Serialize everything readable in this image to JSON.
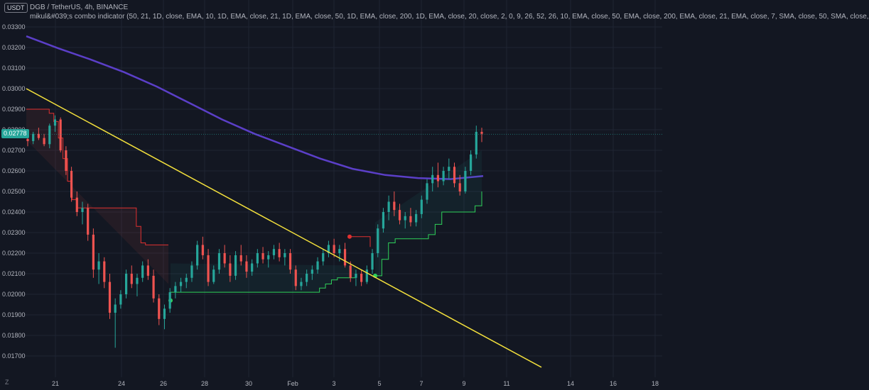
{
  "header": {
    "currency": "USDT",
    "title": "DGB / TetherUS, 4h, BINANCE",
    "indicator": "mikul&#039;s combo indicator (50, 21, 1D, close, EMA, 10, 1D, EMA, close, 21, 1D, EMA, close, 50, 1D, EMA, close, 200, 1D, EMA, close, 20, close, 2, 0, 9, 26, 52, 26, 10, EMA, close, 50, EMA, close, 200, EMA, close, 21, EMA, close, 7, SMA, close, 50, SMA, close,"
  },
  "current_price": "0.02778",
  "zoom_label": "Z",
  "colors": {
    "background": "#131722",
    "grid": "#1f2433",
    "up": "#26a69a",
    "down": "#ef5350",
    "ma": "#5b3fc8",
    "trendline": "#f3e03c",
    "stop_up": "#2fd15a",
    "stop_down": "#e03030"
  },
  "chart_data": {
    "type": "candlestick",
    "y_ticks": [
      "0.03300",
      "0.03200",
      "0.03100",
      "0.03000",
      "0.02900",
      "0.02800",
      "0.02700",
      "0.02600",
      "0.02500",
      "0.02400",
      "0.02300",
      "0.02200",
      "0.02100",
      "0.02000",
      "0.01900",
      "0.01800",
      "0.01700"
    ],
    "x_ticks": [
      "21",
      "24",
      "26",
      "28",
      "30",
      "Feb",
      "3",
      "5",
      "7",
      "9",
      "11",
      "14",
      "16",
      "18"
    ],
    "ylim": [
      0.0165,
      0.034
    ],
    "candles": [
      [
        0.02755,
        0.02775,
        0.0272,
        0.02745
      ],
      [
        0.02745,
        0.0279,
        0.0273,
        0.0278
      ],
      [
        0.0278,
        0.0281,
        0.0275,
        0.0276
      ],
      [
        0.0276,
        0.0278,
        0.0272,
        0.0273
      ],
      [
        0.0273,
        0.0283,
        0.0271,
        0.0282
      ],
      [
        0.0282,
        0.0287,
        0.0279,
        0.0285
      ],
      [
        0.0285,
        0.0286,
        0.0269,
        0.027
      ],
      [
        0.027,
        0.0272,
        0.0258,
        0.026
      ],
      [
        0.026,
        0.0262,
        0.0245,
        0.0247
      ],
      [
        0.0247,
        0.025,
        0.0238,
        0.024
      ],
      [
        0.024,
        0.0245,
        0.0234,
        0.0242
      ],
      [
        0.0242,
        0.0244,
        0.0226,
        0.0229
      ],
      [
        0.0229,
        0.0232,
        0.0208,
        0.0212
      ],
      [
        0.0212,
        0.022,
        0.0205,
        0.0216
      ],
      [
        0.0216,
        0.0218,
        0.0203,
        0.0206
      ],
      [
        0.0206,
        0.021,
        0.0188,
        0.0191
      ],
      [
        0.0191,
        0.0198,
        0.0174,
        0.0195
      ],
      [
        0.0195,
        0.0202,
        0.0193,
        0.02
      ],
      [
        0.02,
        0.0212,
        0.0198,
        0.021
      ],
      [
        0.021,
        0.0214,
        0.0203,
        0.0205
      ],
      [
        0.0205,
        0.021,
        0.0199,
        0.0208
      ],
      [
        0.0208,
        0.0216,
        0.0206,
        0.0214
      ],
      [
        0.0214,
        0.0217,
        0.0207,
        0.0209
      ],
      [
        0.0209,
        0.0212,
        0.0196,
        0.0198
      ],
      [
        0.0198,
        0.02,
        0.0185,
        0.0188
      ],
      [
        0.0188,
        0.0195,
        0.0183,
        0.0193
      ],
      [
        0.0193,
        0.0203,
        0.0191,
        0.0201
      ],
      [
        0.0201,
        0.0206,
        0.0198,
        0.0204
      ],
      [
        0.0204,
        0.0208,
        0.0201,
        0.0206
      ],
      [
        0.0206,
        0.021,
        0.0203,
        0.0208
      ],
      [
        0.0208,
        0.0216,
        0.0206,
        0.0214
      ],
      [
        0.0214,
        0.0226,
        0.0212,
        0.0224
      ],
      [
        0.0224,
        0.0228,
        0.0217,
        0.0219
      ],
      [
        0.0219,
        0.0222,
        0.0204,
        0.0206
      ],
      [
        0.0206,
        0.0214,
        0.0205,
        0.0212
      ],
      [
        0.0212,
        0.0222,
        0.021,
        0.022
      ],
      [
        0.022,
        0.0224,
        0.0213,
        0.0215
      ],
      [
        0.0215,
        0.0219,
        0.0206,
        0.0209
      ],
      [
        0.0209,
        0.0221,
        0.0207,
        0.0219
      ],
      [
        0.0219,
        0.0224,
        0.0214,
        0.0216
      ],
      [
        0.0216,
        0.0219,
        0.0208,
        0.0211
      ],
      [
        0.0211,
        0.0217,
        0.0209,
        0.0215
      ],
      [
        0.0215,
        0.0222,
        0.0213,
        0.022
      ],
      [
        0.022,
        0.0223,
        0.0215,
        0.0217
      ],
      [
        0.0217,
        0.0221,
        0.0213,
        0.0219
      ],
      [
        0.0219,
        0.0224,
        0.0217,
        0.0222
      ],
      [
        0.0222,
        0.0225,
        0.0216,
        0.0218
      ],
      [
        0.0218,
        0.0222,
        0.0214,
        0.022
      ],
      [
        0.022,
        0.0222,
        0.021,
        0.0212
      ],
      [
        0.0212,
        0.0214,
        0.0202,
        0.0204
      ],
      [
        0.0204,
        0.0208,
        0.0202,
        0.0206
      ],
      [
        0.0206,
        0.0212,
        0.0204,
        0.021
      ],
      [
        0.021,
        0.0214,
        0.0207,
        0.0212
      ],
      [
        0.0212,
        0.0218,
        0.021,
        0.0216
      ],
      [
        0.0216,
        0.0222,
        0.0214,
        0.022
      ],
      [
        0.022,
        0.0226,
        0.0218,
        0.0224
      ],
      [
        0.0224,
        0.0227,
        0.0218,
        0.022
      ],
      [
        0.022,
        0.0224,
        0.0216,
        0.0222
      ],
      [
        0.0222,
        0.0225,
        0.0213,
        0.0214
      ],
      [
        0.0214,
        0.0216,
        0.0206,
        0.0208
      ],
      [
        0.0208,
        0.0212,
        0.0204,
        0.021
      ],
      [
        0.021,
        0.0212,
        0.0204,
        0.0206
      ],
      [
        0.0206,
        0.0214,
        0.0205,
        0.0212
      ],
      [
        0.0212,
        0.0222,
        0.021,
        0.022
      ],
      [
        0.022,
        0.0234,
        0.0218,
        0.0232
      ],
      [
        0.0232,
        0.0242,
        0.023,
        0.024
      ],
      [
        0.024,
        0.0248,
        0.0236,
        0.0245
      ],
      [
        0.0245,
        0.025,
        0.0238,
        0.0241
      ],
      [
        0.0241,
        0.0244,
        0.0234,
        0.0236
      ],
      [
        0.0236,
        0.024,
        0.0232,
        0.0238
      ],
      [
        0.0238,
        0.0242,
        0.0233,
        0.0235
      ],
      [
        0.0235,
        0.0241,
        0.0233,
        0.0239
      ],
      [
        0.0239,
        0.0248,
        0.0237,
        0.0246
      ],
      [
        0.0246,
        0.0256,
        0.0244,
        0.0254
      ],
      [
        0.0254,
        0.0262,
        0.025,
        0.0258
      ],
      [
        0.0258,
        0.0264,
        0.0252,
        0.0255
      ],
      [
        0.0255,
        0.0262,
        0.0253,
        0.026
      ],
      [
        0.026,
        0.0266,
        0.0256,
        0.0262
      ],
      [
        0.0262,
        0.0264,
        0.0252,
        0.0254
      ],
      [
        0.0254,
        0.0258,
        0.0248,
        0.025
      ],
      [
        0.025,
        0.0262,
        0.0249,
        0.026
      ],
      [
        0.026,
        0.027,
        0.0258,
        0.0268
      ],
      [
        0.0268,
        0.0282,
        0.0266,
        0.0279
      ],
      [
        0.0279,
        0.0281,
        0.0274,
        0.0278
      ]
    ],
    "moving_average": [
      0.03255,
      0.03195,
      0.0314,
      0.0308,
      0.0301,
      0.0293,
      0.0285,
      0.0278,
      0.0272,
      0.0266,
      0.0261,
      0.0258,
      0.02565,
      0.0256,
      0.02575
    ],
    "trendline": [
      [
        0,
        0.03
      ],
      [
        1,
        0.01645
      ]
    ],
    "stop_red": [
      0.029,
      0.029,
      0.029,
      0.029,
      0.029,
      0.0288,
      0.0284,
      0.0276,
      0.0266,
      0.0255,
      0.0246,
      0.0242,
      0.0242,
      0.0242,
      0.0242,
      0.0242,
      0.0242,
      0.0242,
      0.0242,
      0.0242,
      0.0242,
      0.0242,
      0.0242,
      0.0242,
      0.0233,
      0.0225,
      0.0224,
      0.0224,
      0.0224,
      0.0224,
      0.0224,
      0.0224
    ],
    "stop_green": [
      0.0201,
      0.0201,
      0.0201,
      0.0201,
      0.0201,
      0.0201,
      0.0201,
      0.0201,
      0.0201,
      0.0201,
      0.0201,
      0.0201,
      0.0201,
      0.0201,
      0.0201,
      0.0201,
      0.0201,
      0.0201,
      0.0201,
      0.0201,
      0.0201,
      0.0201,
      0.0201,
      0.0201,
      0.0201,
      0.0203,
      0.0205,
      0.0207,
      0.0208,
      0.0208,
      0.0208,
      0.0208
    ],
    "stop_green_2": [
      0.0209,
      0.0217,
      0.0225,
      0.0227,
      0.0227,
      0.0227,
      0.0227,
      0.0227,
      0.0229,
      0.0234,
      0.024,
      0.024,
      0.024,
      0.024,
      0.024,
      0.0243,
      0.025
    ]
  }
}
